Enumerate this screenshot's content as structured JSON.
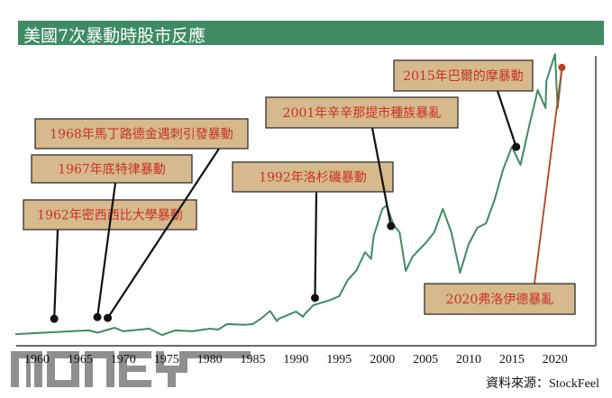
{
  "title": "美國7次暴動時股市反應",
  "source": "資料來源：StockFeel",
  "watermark": "MONEY",
  "colors": {
    "title_bar": "#3f8b64",
    "line": "#3f8b64",
    "label_box": "#d6b98c",
    "label_text": "#c8322a",
    "highlight": "#b5401f"
  },
  "chart_data": {
    "type": "line",
    "title": "美國7次暴動時股市反應",
    "xlabel": "",
    "ylabel": "",
    "xlim": [
      1957.5,
      2025
    ],
    "ylim": [
      0,
      100
    ],
    "grid": false,
    "x_ticks": [
      "1960",
      "1965",
      "1970",
      "1975",
      "1980",
      "1985",
      "1990",
      "1995",
      "2000",
      "2005",
      "2010",
      "2015",
      "2020"
    ],
    "series": [
      {
        "x": [
          1957.5,
          1962,
          1966,
          1967,
          1969,
          1970,
          1973,
          1974.5,
          1976,
          1978,
          1980,
          1981,
          1982,
          1984,
          1985,
          1986,
          1987,
          1987.8,
          1988,
          1990,
          1990.8,
          1991,
          1992,
          1994,
          1995,
          1996,
          1997,
          1998,
          1998.7,
          1999,
          2000,
          2000.5,
          2001.3,
          2002,
          2002.7,
          2003.5,
          2005,
          2006,
          2007,
          2008,
          2009,
          2010,
          2011,
          2012,
          2013,
          2014,
          2015,
          2016,
          2017,
          2018,
          2018.9,
          2019,
          2020,
          2020.3,
          2020.8
        ],
        "y": [
          4,
          4.7,
          5.3,
          4.5,
          6.2,
          5,
          5.9,
          3.7,
          5.3,
          5,
          5.9,
          5.6,
          7.5,
          7.2,
          7.5,
          9.5,
          12,
          8.5,
          9.3,
          11.8,
          10,
          10.9,
          14,
          15.8,
          17.1,
          22.7,
          26,
          32.3,
          30,
          37.9,
          47.2,
          48.4,
          41.6,
          39.1,
          25.8,
          30.7,
          35.4,
          39.1,
          47.2,
          39.1,
          25.2,
          35.1,
          40.7,
          42.2,
          50.3,
          60.9,
          68.6,
          62.4,
          75.8,
          88.2,
          82,
          91.3,
          100.6,
          82,
          96
        ]
      }
    ],
    "events": [
      {
        "label": "1962年密西西比大學暴動",
        "year": 1962,
        "value": 9.3
      },
      {
        "label": "1967年底特律暴動",
        "year": 1967,
        "value": 9.9
      },
      {
        "label": "1968年馬丁路德金遇刺引發暴動",
        "year": 1968.2,
        "value": 9.6
      },
      {
        "label": "1992年洛杉磯暴動",
        "year": 1992.2,
        "value": 16.5
      },
      {
        "label": "2001年辛辛那提市種族暴亂",
        "year": 2001,
        "value": 41.3
      },
      {
        "label": "2015年巴爾的摩暴動",
        "year": 2015.5,
        "value": 68.6
      },
      {
        "label": "2020弗洛伊德暴亂",
        "year": 2020.8,
        "value": 96,
        "highlight": true
      }
    ]
  }
}
